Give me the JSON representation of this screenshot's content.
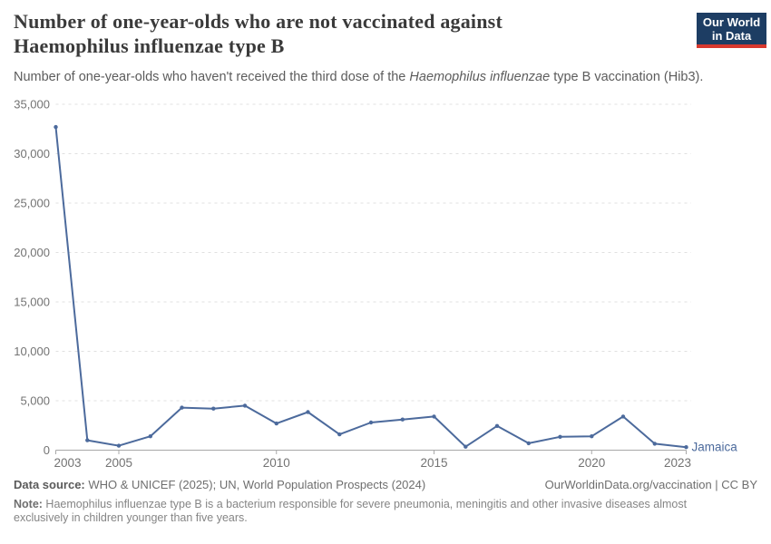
{
  "header": {
    "title_lines": [
      "Number of one-year-olds who are not vaccinated against",
      "Haemophilus influenzae type B"
    ],
    "subtitle_prefix": "Number of one-year-olds who haven't received the third dose of the ",
    "subtitle_italic": "Haemophilus influenzae",
    "subtitle_suffix": " type B vaccination (Hib3).",
    "logo_line1": "Our World",
    "logo_line2": "in Data",
    "logo_bg_color": "#1d3d63",
    "logo_accent_color": "#d7382e"
  },
  "chart_data": {
    "type": "line",
    "title": "Number of one-year-olds who are not vaccinated against Haemophilus influenzae type B",
    "xlabel": "",
    "ylabel": "",
    "xlim": [
      2003,
      2023
    ],
    "ylim": [
      0,
      35000
    ],
    "x_ticks": [
      2003,
      2005,
      2010,
      2015,
      2020,
      2023
    ],
    "y_ticks": [
      0,
      5000,
      10000,
      15000,
      20000,
      25000,
      30000,
      35000
    ],
    "grid": "horizontal-dashed",
    "grid_color": "#e0e0e0",
    "axis_color": "#a8a8a8",
    "axis_text_color": "#737373",
    "legend_position": "end-of-line-label",
    "series": [
      {
        "name": "Jamaica",
        "color": "#4c6a9c",
        "x": [
          2003,
          2004,
          2005,
          2006,
          2007,
          2008,
          2009,
          2010,
          2011,
          2012,
          2013,
          2014,
          2015,
          2016,
          2017,
          2018,
          2019,
          2020,
          2021,
          2022,
          2023
        ],
        "values": [
          32700,
          1000,
          450,
          1400,
          4300,
          4200,
          4500,
          2700,
          3850,
          1600,
          2800,
          3100,
          3400,
          350,
          2450,
          700,
          1350,
          1400,
          3400,
          650,
          300
        ]
      }
    ]
  },
  "footer": {
    "datasource_label": "Data source:",
    "datasource_text": " WHO & UNICEF (2025); UN, World Population Prospects (2024)",
    "rights": "OurWorldinData.org/vaccination | CC BY",
    "note_label": "Note:",
    "note_text": " Haemophilus influenzae type B is a bacterium responsible for severe pneumonia, meningitis and other invasive diseases almost exclusively in children younger than five years."
  }
}
